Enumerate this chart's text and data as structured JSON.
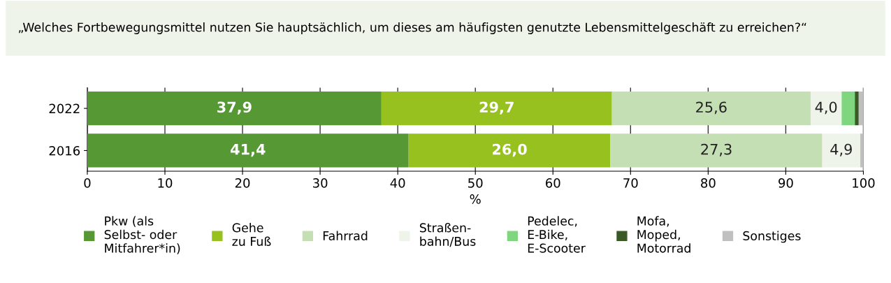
{
  "chart_data": {
    "type": "bar",
    "orientation": "horizontal",
    "stacked": true,
    "title": "„Welches Fortbewegungsmittel nutzen Sie hauptsächlich, um dieses am häufigsten genutzte Lebensmittelgeschäft zu erreichen?“",
    "categories": [
      "2022",
      "2016"
    ],
    "series": [
      {
        "name": "Pkw (als\nSelbst- oder\nMitfahrer*in)",
        "color": "#559834",
        "values": [
          37.9,
          41.4
        ],
        "value_labels": [
          "37,9",
          "41,4"
        ]
      },
      {
        "name": "Gehe\nzu Fuß",
        "color": "#97c11f",
        "values": [
          29.7,
          26.0
        ],
        "value_labels": [
          "29,7",
          "26,0"
        ]
      },
      {
        "name": "Fahrrad",
        "color": "#c5dfb4",
        "values": [
          25.6,
          27.3
        ],
        "value_labels": [
          "25,6",
          "27,3"
        ]
      },
      {
        "name": "Straßen-\nbahn/Bus",
        "color": "#eef4e9",
        "values": [
          4.0,
          4.9
        ],
        "value_labels": [
          "4,0",
          "4,9"
        ]
      },
      {
        "name": "Pedelec,\nE-Bike,\nE-Scooter",
        "color": "#7fd67f",
        "values": [
          1.7,
          0
        ],
        "value_labels": [
          null,
          null
        ]
      },
      {
        "name": "Mofa,\nMoped,\nMotorrad",
        "color": "#3a5a25",
        "values": [
          0.5,
          0
        ],
        "value_labels": [
          null,
          null
        ]
      },
      {
        "name": "Sonstiges",
        "color": "#c0c0c0",
        "values": [
          0.6,
          0.4
        ],
        "value_labels": [
          null,
          null
        ]
      }
    ],
    "xlabel": "%",
    "xlim": [
      0,
      100
    ],
    "xticks": [
      0,
      10,
      20,
      30,
      40,
      50,
      60,
      70,
      80,
      90,
      100
    ],
    "grid": "x",
    "legend": "bottom"
  }
}
